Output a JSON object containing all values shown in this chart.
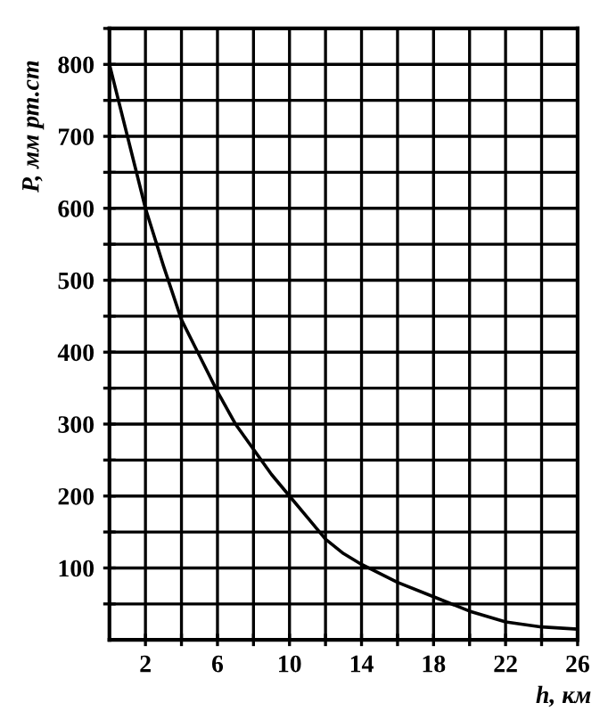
{
  "chart_data": {
    "type": "line",
    "xlabel": "h, км",
    "ylabel": "P, мм рт.ст",
    "x": [
      0,
      1,
      2,
      3,
      4,
      5,
      6,
      7,
      8,
      9,
      10,
      11,
      12,
      13,
      14,
      16,
      18,
      20,
      22,
      24,
      26
    ],
    "series": [
      {
        "color": "#000000",
        "values": [
          800,
          700,
          600,
          520,
          445,
          395,
          345,
          300,
          265,
          230,
          200,
          170,
          140,
          120,
          105,
          80,
          60,
          40,
          25,
          18,
          15
        ]
      }
    ],
    "xlim": [
      0,
      26
    ],
    "ylim": [
      0,
      850
    ],
    "xticks": [
      2,
      {
        "value": 4,
        "label": null
      },
      6,
      {
        "value": 8,
        "label": null
      },
      10,
      {
        "value": 12,
        "label": null
      },
      14,
      {
        "value": 16,
        "label": null
      },
      18,
      {
        "value": 20,
        "label": null
      },
      22,
      {
        "value": 24,
        "label": null
      },
      26
    ],
    "yticks": [
      {
        "value": 50,
        "label": null
      },
      100,
      {
        "value": 150,
        "label": null
      },
      200,
      {
        "value": 250,
        "label": null
      },
      300,
      {
        "value": 350,
        "label": null
      },
      400,
      {
        "value": 450,
        "label": null
      },
      500,
      {
        "value": 550,
        "label": null
      },
      600,
      {
        "value": 650,
        "label": null
      },
      700,
      {
        "value": 750,
        "label": null
      },
      800,
      {
        "value": 850,
        "label": null
      }
    ],
    "grid": true,
    "marker": "none",
    "line_style": "solid"
  }
}
